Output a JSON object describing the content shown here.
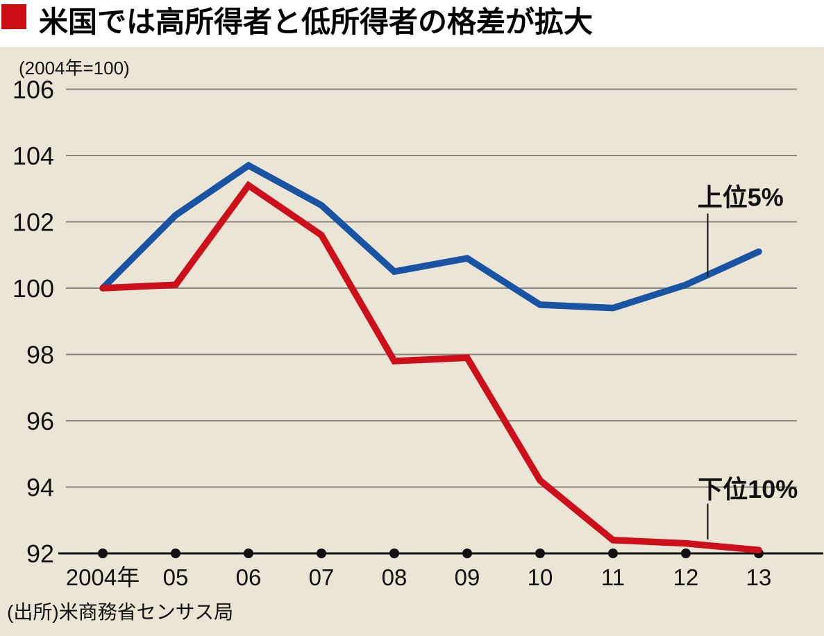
{
  "header": {
    "title": "米国では高所得者と低所得者の格差が拡大",
    "bullet_color": "#cd0d16"
  },
  "footer": {
    "source": "(出所)米商務省センサス局"
  },
  "chart_data": {
    "type": "line",
    "title": "米国では高所得者と低所得者の格差が拡大",
    "unit_label": "(2004年=100)",
    "x_tick_labels": [
      "2004年",
      "05",
      "06",
      "07",
      "08",
      "09",
      "10",
      "11",
      "12",
      "13"
    ],
    "x_years": [
      2004,
      2005,
      2006,
      2007,
      2008,
      2009,
      2010,
      2011,
      2012,
      2013
    ],
    "ylim": [
      92,
      106
    ],
    "y_ticks": [
      92,
      94,
      96,
      98,
      100,
      102,
      104,
      106
    ],
    "grid": true,
    "legend_position": "inline-annotations",
    "series": [
      {
        "name": "上位5%",
        "color": "#1953a4",
        "values": [
          100,
          102.2,
          103.7,
          102.5,
          100.5,
          100.9,
          99.5,
          99.4,
          100.1,
          101.1
        ]
      },
      {
        "name": "下位10%",
        "color": "#cc0f1a",
        "values": [
          100,
          100.1,
          103.1,
          101.6,
          97.8,
          97.9,
          94.2,
          92.4,
          92.3,
          92.1
        ]
      }
    ],
    "annotations": [
      {
        "text": "上位5%",
        "series_index": 0,
        "text_x_year": 2012.75,
        "text_y_value": 102.75,
        "line_x_year": 2012.3,
        "line_y1_value": 102.25,
        "line_y2_value": 100.35
      },
      {
        "text": "下位10%",
        "series_index": 1,
        "text_x_year": 2012.85,
        "text_y_value": 93.95,
        "line_x_year": 2012.3,
        "line_y1_value": 93.5,
        "line_y2_value": 92.42
      }
    ],
    "colors": {
      "background": "#eae5d4",
      "grid": "#87857c",
      "axis": "#111111",
      "text": "#111111"
    }
  }
}
